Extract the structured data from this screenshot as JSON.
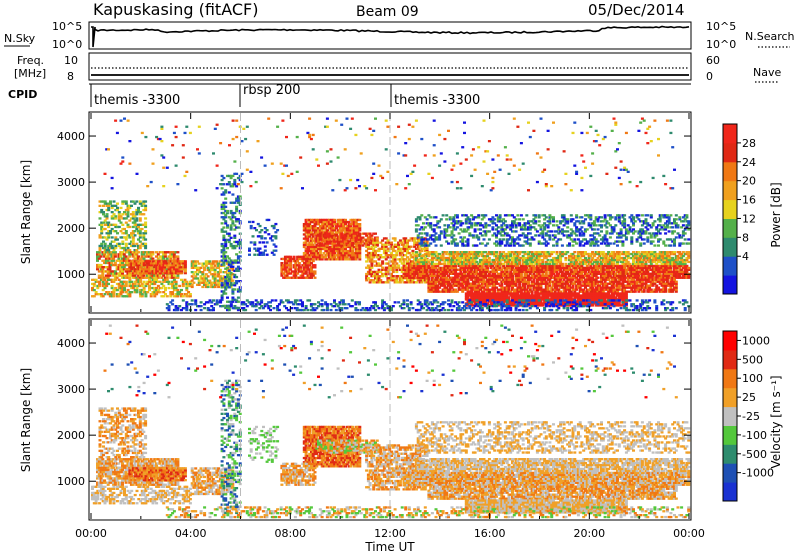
{
  "header": {
    "station": "Kapuskasing (fitACF)",
    "beam": "Beam 09",
    "date": "05/Dec/2014"
  },
  "noise_panel": {
    "left_label": "N.Sky",
    "left_ticks": [
      "10^5",
      "10^0"
    ],
    "right_label": "N.Search",
    "right_ticks": [
      "10^5",
      "10^0"
    ]
  },
  "freq_panel": {
    "left_label_1": "Freq.",
    "left_label_2": "[MHz]",
    "left_ticks": [
      "10",
      "8"
    ],
    "right_label": "Nave",
    "right_ticks": [
      "60",
      "0"
    ]
  },
  "cpid": {
    "label": "CPID",
    "segments": [
      {
        "name": "themis -3300",
        "start": 0,
        "end": 6
      },
      {
        "name": "rbsp 200",
        "start": 6,
        "end": 12
      },
      {
        "name": "themis -3300",
        "start": 12,
        "end": 24
      }
    ]
  },
  "colors": {
    "power_scale": [
      "#1414e0",
      "#1e50c8",
      "#2e8a6e",
      "#54b04a",
      "#e6d21e",
      "#f0a01e",
      "#f07814",
      "#e02814",
      "#f0261a"
    ],
    "velocity_scale": [
      "#1a32d2",
      "#1e50b4",
      "#2e8c6e",
      "#54c83c",
      "#c0c0c0",
      "#f0a028",
      "#f07814",
      "#e02a14",
      "#ff0000"
    ]
  },
  "chart_data": [
    {
      "type": "heatmap",
      "name": "power",
      "xlabel": "Time UT",
      "ylabel": "Slant Range [km]",
      "colorbar_label": "Power [dB]",
      "colorbar_ticks": [
        "28",
        "24",
        "20",
        "16",
        "12",
        "8",
        "4"
      ],
      "x_range_hours": [
        0,
        24
      ],
      "y_range_km": [
        180,
        4500
      ],
      "x_ticks": [
        "00:00",
        "04:00",
        "08:00",
        "12:00",
        "16:00",
        "20:00",
        "00:00"
      ],
      "y_ticks": [
        "1000",
        "2000",
        "3000",
        "4000"
      ]
    },
    {
      "type": "heatmap",
      "name": "velocity",
      "xlabel": "Time UT",
      "ylabel": "Slant Range [km]",
      "colorbar_label": "Velocity [m s⁻¹]",
      "colorbar_ticks": [
        "1000",
        "500",
        "100",
        "25",
        "-25",
        "-100",
        "-500",
        "-1000"
      ],
      "x_range_hours": [
        0,
        24
      ],
      "y_range_km": [
        180,
        4500
      ],
      "x_ticks": [
        "00:00",
        "04:00",
        "08:00",
        "12:00",
        "16:00",
        "20:00",
        "00:00"
      ],
      "y_ticks": [
        "1000",
        "2000",
        "3000",
        "4000"
      ]
    }
  ]
}
